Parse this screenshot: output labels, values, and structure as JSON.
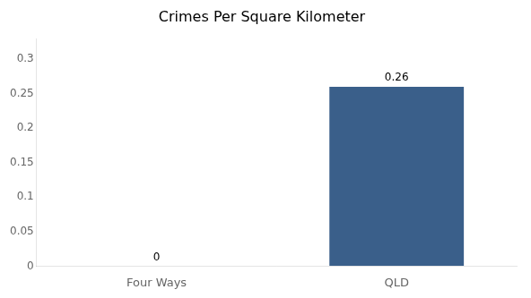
{
  "chart_data": {
    "type": "bar",
    "title": "Crimes Per Square Kilometer",
    "categories": [
      "Four Ways",
      "QLD"
    ],
    "values": [
      0,
      0.26
    ],
    "color": "#3a5f8a",
    "ylim": [
      0,
      0.33
    ],
    "yticks": [
      0,
      0.05,
      0.1,
      0.15,
      0.2,
      0.25,
      0.3
    ],
    "grid": false,
    "data_labels": true
  }
}
